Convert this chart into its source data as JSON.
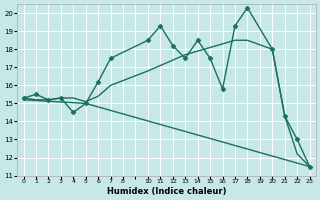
{
  "xlabel": "Humidex (Indice chaleur)",
  "background_color": "#c8e8e8",
  "grid_color": "#ffffff",
  "line_color": "#1a7060",
  "xlim": [
    -0.5,
    23.5
  ],
  "ylim": [
    11,
    20.5
  ],
  "line1_x": [
    0,
    1,
    2,
    3,
    4,
    5,
    6,
    7,
    10,
    11,
    12,
    13,
    14,
    15,
    16,
    17,
    18,
    20,
    21,
    22,
    23
  ],
  "line1_y": [
    15.3,
    15.5,
    15.2,
    15.3,
    14.5,
    15.0,
    16.2,
    17.5,
    18.5,
    19.3,
    18.2,
    17.5,
    18.5,
    17.5,
    15.8,
    19.3,
    20.3,
    18.0,
    14.3,
    13.0,
    11.5
  ],
  "line2_x": [
    0,
    1,
    2,
    3,
    4,
    5,
    6,
    7,
    10,
    11,
    12,
    13,
    14,
    15,
    16,
    17,
    18,
    20,
    21,
    22,
    23
  ],
  "line2_y": [
    15.3,
    15.2,
    15.2,
    15.3,
    15.3,
    15.1,
    15.4,
    16.0,
    16.8,
    17.1,
    17.4,
    17.7,
    17.9,
    18.1,
    18.3,
    18.5,
    18.5,
    18.0,
    14.3,
    12.2,
    11.5
  ],
  "line3_x": [
    0,
    5,
    23
  ],
  "line3_y": [
    15.2,
    15.0,
    11.5
  ],
  "xtick_labels": [
    "0",
    "1",
    "2",
    "3",
    "4",
    "5",
    "6",
    "7",
    "8",
    "",
    "10",
    "11",
    "12",
    "13",
    "14",
    "15",
    "16",
    "17",
    "18",
    "19",
    "20",
    "21",
    "22",
    "23"
  ]
}
